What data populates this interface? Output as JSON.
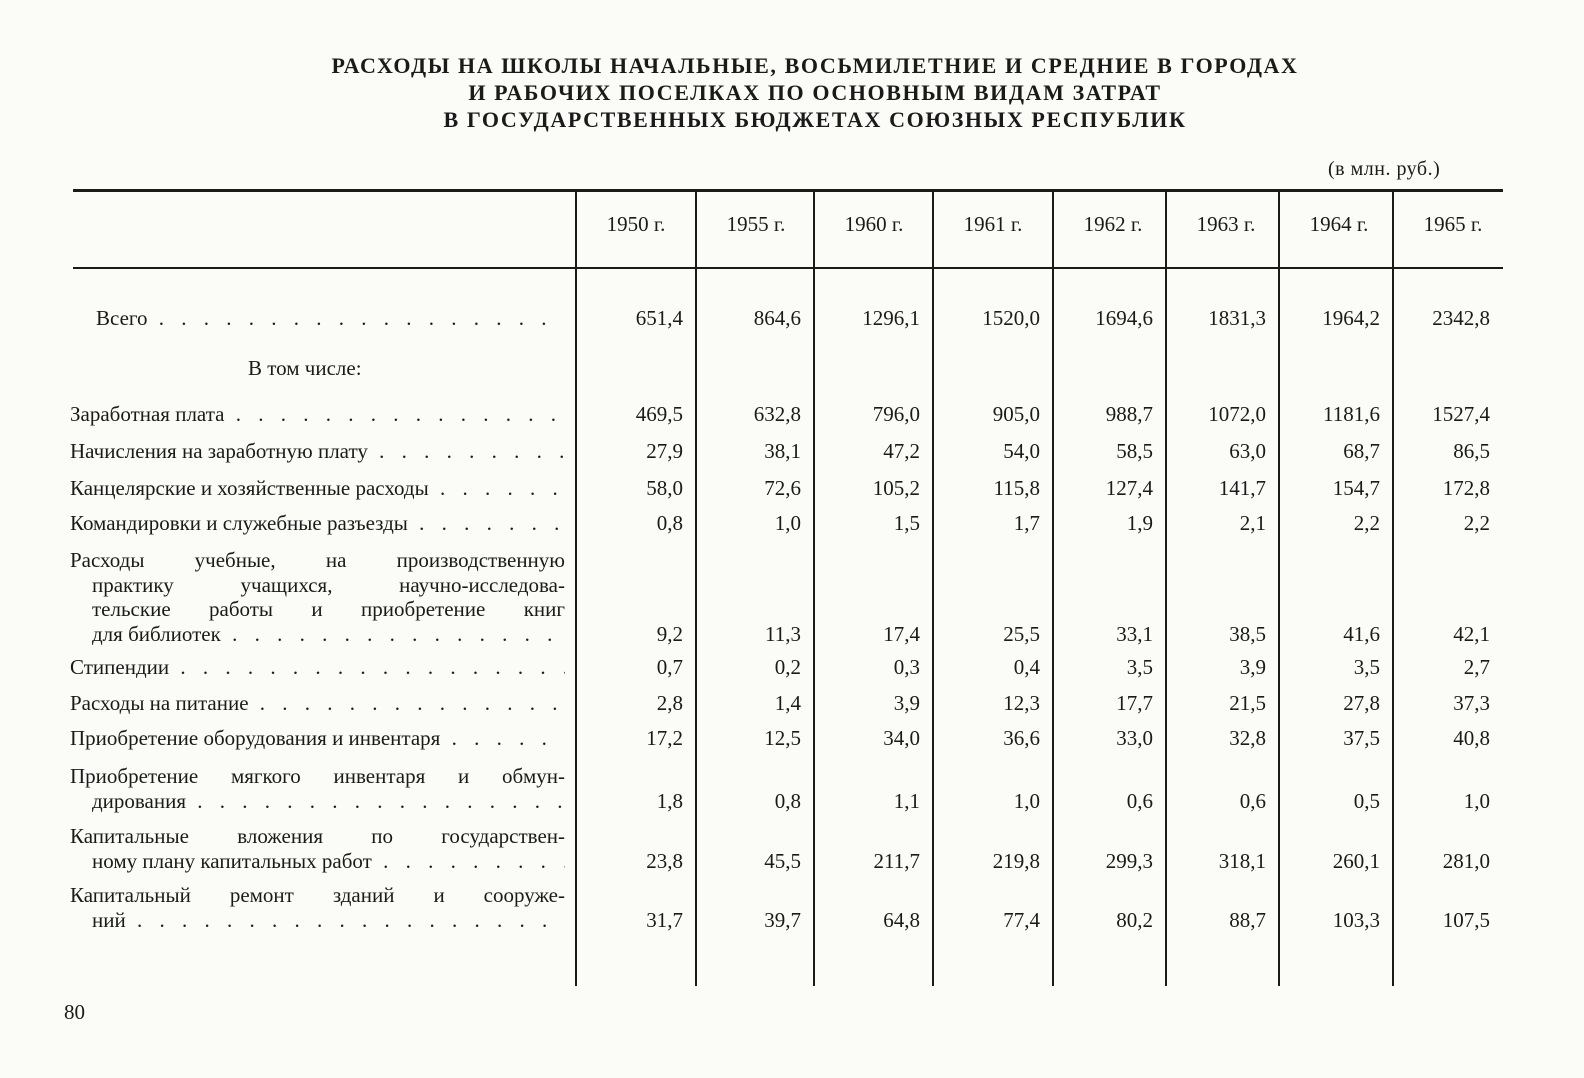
{
  "title": [
    "РАСХОДЫ НА ШКОЛЫ НАЧАЛЬНЫЕ, ВОСЬМИЛЕТНИЕ И СРЕДНИЕ В ГОРОДАХ",
    "И РАБОЧИХ ПОСЕЛКАХ ПО ОСНОВНЫМ ВИДАМ ЗАТРАТ",
    "В ГОСУДАРСТВЕННЫХ БЮДЖЕТАХ СОЮЗНЫХ РЕСПУБЛИК"
  ],
  "unit": "(в млн. руб.)",
  "columns": [
    "1950 г.",
    "1955 г.",
    "1960 г.",
    "1961 г.",
    "1962 г.",
    "1963 г.",
    "1964 г.",
    "1965 г."
  ],
  "subheading": "В том числе:",
  "rows": [
    {
      "label": [
        "Всего"
      ],
      "values": [
        "651,4",
        "864,6",
        "1296,1",
        "1520,0",
        "1694,6",
        "1831,3",
        "1964,2",
        "2342,8"
      ]
    },
    {
      "label": [
        "Заработная плата"
      ],
      "values": [
        "469,5",
        "632,8",
        "796,0",
        "905,0",
        "988,7",
        "1072,0",
        "1181,6",
        "1527,4"
      ]
    },
    {
      "label": [
        "Начисления на заработную плату"
      ],
      "values": [
        "27,9",
        "38,1",
        "47,2",
        "54,0",
        "58,5",
        "63,0",
        "68,7",
        "86,5"
      ]
    },
    {
      "label": [
        "Канцелярские и хозяйственные расходы"
      ],
      "values": [
        "58,0",
        "72,6",
        "105,2",
        "115,8",
        "127,4",
        "141,7",
        "154,7",
        "172,8"
      ]
    },
    {
      "label": [
        "Командировки и служебные разъезды"
      ],
      "values": [
        "0,8",
        "1,0",
        "1,5",
        "1,7",
        "1,9",
        "2,1",
        "2,2",
        "2,2"
      ]
    },
    {
      "label": [
        "Расходы учебные, на производственную",
        "практику учащихся, научно-исследова-",
        "тельские работы и приобретение книг",
        "для библиотек"
      ],
      "values": [
        "9,2",
        "11,3",
        "17,4",
        "25,5",
        "33,1",
        "38,5",
        "41,6",
        "42,1"
      ]
    },
    {
      "label": [
        "Стипендии"
      ],
      "values": [
        "0,7",
        "0,2",
        "0,3",
        "0,4",
        "3,5",
        "3,9",
        "3,5",
        "2,7"
      ]
    },
    {
      "label": [
        "Расходы на питание"
      ],
      "values": [
        "2,8",
        "1,4",
        "3,9",
        "12,3",
        "17,7",
        "21,5",
        "27,8",
        "37,3"
      ]
    },
    {
      "label": [
        "Приобретение оборудования и инвентаря"
      ],
      "values": [
        "17,2",
        "12,5",
        "34,0",
        "36,6",
        "33,0",
        "32,8",
        "37,5",
        "40,8"
      ]
    },
    {
      "label": [
        "Приобретение мягкого инвентаря и обмун-",
        "дирования"
      ],
      "values": [
        "1,8",
        "0,8",
        "1,1",
        "1,0",
        "0,6",
        "0,6",
        "0,5",
        "1,0"
      ]
    },
    {
      "label": [
        "Капитальные вложения по государствен-",
        "ному плану капитальных работ"
      ],
      "values": [
        "23,8",
        "45,5",
        "211,7",
        "219,8",
        "299,3",
        "318,1",
        "260,1",
        "281,0"
      ]
    },
    {
      "label": [
        "Капитальный ремонт зданий и сооруже-",
        "ний"
      ],
      "values": [
        "31,7",
        "39,7",
        "64,8",
        "77,4",
        "80,2",
        "88,7",
        "103,3",
        "107,5"
      ]
    }
  ],
  "page_number": "80"
}
